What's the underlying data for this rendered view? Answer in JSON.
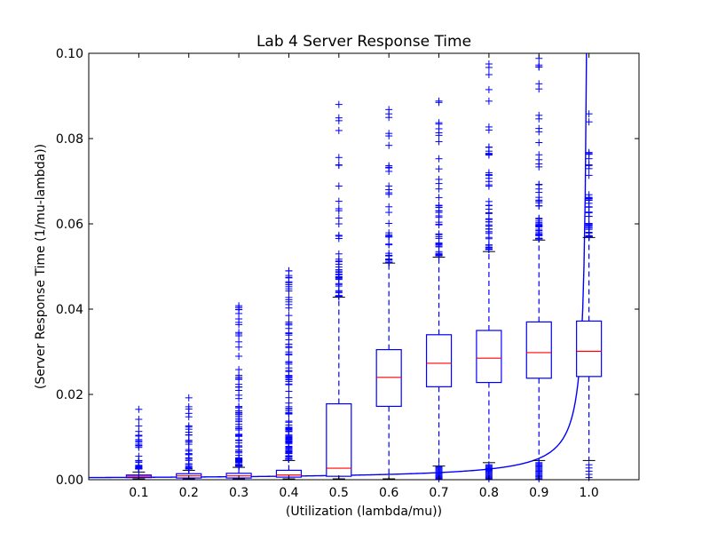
{
  "chart_data": {
    "type": "box",
    "title": "Lab 4 Server Response Time",
    "xlabel": "(Utilization (lambda/mu))",
    "ylabel": "(Server Response Time (1/mu-lambda))",
    "x_tick_labels": [
      "0.1",
      "0.2",
      "0.3",
      "0.4",
      "0.5",
      "0.6",
      "0.7",
      "0.8",
      "0.9",
      "1.0"
    ],
    "y_tick_labels": [
      "0.00",
      "0.02",
      "0.04",
      "0.06",
      "0.08",
      "0.10"
    ],
    "y_ticks": [
      0.0,
      0.02,
      0.04,
      0.06,
      0.08,
      0.1
    ],
    "xlim": [
      0.0,
      1.1
    ],
    "ylim": [
      0.0,
      0.1
    ],
    "grid": false,
    "colors": {
      "box": "#0000ff",
      "median": "#ff0000",
      "flier": "#0000ff",
      "curve": "#0000ff"
    },
    "boxes": [
      {
        "x": 0.1,
        "whisker_low": 0.0002,
        "q1": 0.0005,
        "median": 0.0008,
        "q3": 0.0011,
        "whisker_high": 0.0018,
        "flier_low": 0.0025,
        "flier_high": 0.0165,
        "flier_count": 30
      },
      {
        "x": 0.2,
        "whisker_low": 0.0002,
        "q1": 0.0004,
        "median": 0.0009,
        "q3": 0.0014,
        "whisker_high": 0.0022,
        "flier_low": 0.0025,
        "flier_high": 0.0192,
        "flier_count": 35
      },
      {
        "x": 0.3,
        "whisker_low": 0.0002,
        "q1": 0.0004,
        "median": 0.0009,
        "q3": 0.0015,
        "whisker_high": 0.0029,
        "flier_low": 0.0032,
        "flier_high": 0.0408,
        "flier_count": 90
      },
      {
        "x": 0.4,
        "whisker_low": 0.0002,
        "q1": 0.0006,
        "median": 0.0011,
        "q3": 0.0022,
        "whisker_high": 0.0045,
        "flier_low": 0.0048,
        "flier_high": 0.049,
        "flier_count": 130
      },
      {
        "x": 0.5,
        "whisker_low": 0.0002,
        "q1": 0.0008,
        "median": 0.0027,
        "q3": 0.0178,
        "whisker_high": 0.0428,
        "flier_low": 0.043,
        "flier_high": 0.088,
        "flier_count": 45
      },
      {
        "x": 0.6,
        "whisker_low": 0.0002,
        "q1": 0.0172,
        "median": 0.024,
        "q3": 0.0305,
        "whisker_high": 0.0508,
        "flier_low": 0.051,
        "flier_high": 0.0868,
        "flier_count": 40
      },
      {
        "x": 0.7,
        "whisker_low": 0.0032,
        "q1": 0.0218,
        "median": 0.0273,
        "q3": 0.034,
        "whisker_high": 0.0522,
        "flier_low": 0.0525,
        "flier_high": 0.0888,
        "flier_count": 45,
        "low_flier_min": 0.0002,
        "low_flier_max": 0.003,
        "low_flier_count": 14
      },
      {
        "x": 0.8,
        "whisker_low": 0.004,
        "q1": 0.0228,
        "median": 0.0285,
        "q3": 0.035,
        "whisker_high": 0.0535,
        "flier_low": 0.054,
        "flier_high": 0.0975,
        "flier_count": 50,
        "low_flier_min": 0.0002,
        "low_flier_max": 0.0035,
        "low_flier_count": 16
      },
      {
        "x": 0.9,
        "whisker_low": 0.0045,
        "q1": 0.0238,
        "median": 0.0298,
        "q3": 0.037,
        "whisker_high": 0.0562,
        "flier_low": 0.0565,
        "flier_high": 0.0988,
        "flier_count": 55,
        "low_flier_min": 0.0002,
        "low_flier_max": 0.004,
        "low_flier_count": 16
      },
      {
        "x": 1.0,
        "whisker_low": 0.0045,
        "q1": 0.0242,
        "median": 0.0301,
        "q3": 0.0372,
        "whisker_high": 0.0568,
        "flier_low": 0.057,
        "flier_high": 0.0858,
        "flier_count": 45,
        "low_flier_min": 0.0005,
        "low_flier_max": 0.0035,
        "low_flier_count": 5
      }
    ],
    "curve": {
      "formula": "y = 0.0005 / (1 - x)",
      "x_start": 0.0,
      "x_end": 0.995
    }
  }
}
